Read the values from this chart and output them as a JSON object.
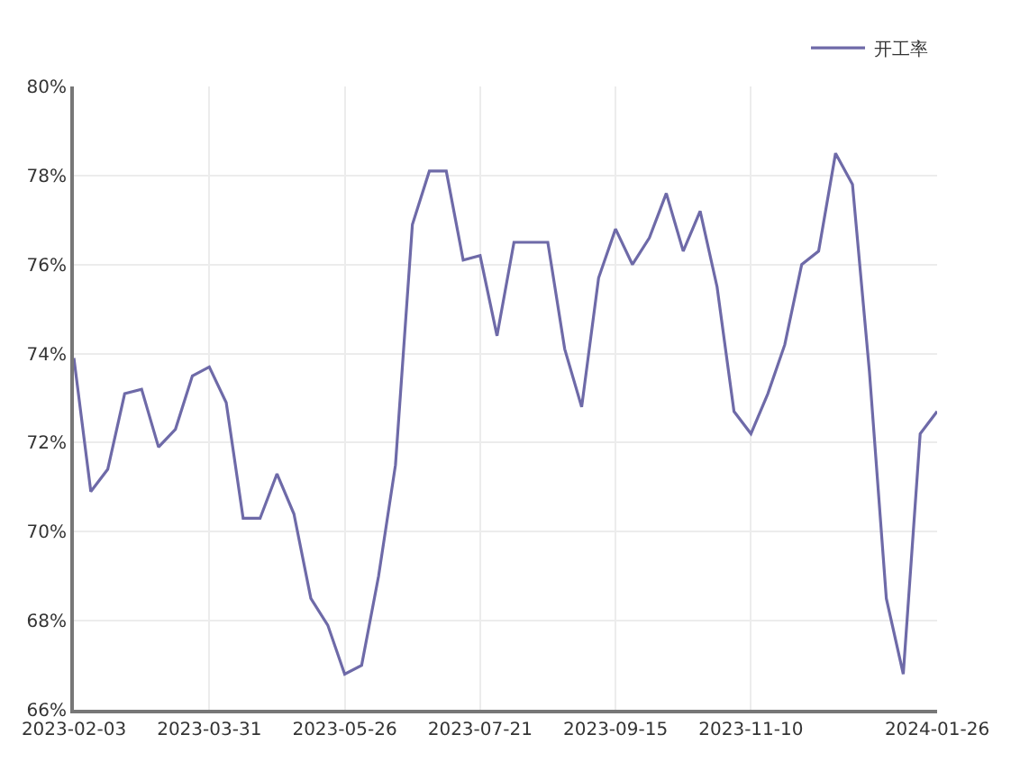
{
  "chart_data": {
    "type": "line",
    "x": [
      "2023-02-03",
      "2023-02-10",
      "2023-02-17",
      "2023-02-24",
      "2023-03-03",
      "2023-03-10",
      "2023-03-17",
      "2023-03-24",
      "2023-03-31",
      "2023-04-07",
      "2023-04-14",
      "2023-04-21",
      "2023-04-28",
      "2023-05-05",
      "2023-05-12",
      "2023-05-19",
      "2023-05-26",
      "2023-06-02",
      "2023-06-09",
      "2023-06-16",
      "2023-06-23",
      "2023-06-30",
      "2023-07-07",
      "2023-07-14",
      "2023-07-21",
      "2023-07-28",
      "2023-08-04",
      "2023-08-11",
      "2023-08-18",
      "2023-08-25",
      "2023-09-01",
      "2023-09-08",
      "2023-09-15",
      "2023-09-22",
      "2023-09-29",
      "2023-10-06",
      "2023-10-13",
      "2023-10-20",
      "2023-10-27",
      "2023-11-03",
      "2023-11-10",
      "2023-11-17",
      "2023-11-24",
      "2023-12-01",
      "2023-12-08",
      "2023-12-15",
      "2023-12-22",
      "2023-12-29",
      "2024-01-05",
      "2024-01-12",
      "2024-01-19",
      "2024-01-26"
    ],
    "series": [
      {
        "name": "开工率",
        "color": "#6e6aa8",
        "values": [
          73.9,
          70.9,
          71.4,
          73.1,
          73.2,
          71.9,
          72.3,
          73.5,
          73.7,
          72.9,
          70.3,
          70.3,
          71.3,
          70.4,
          68.5,
          67.9,
          66.8,
          67.0,
          69.0,
          71.5,
          76.9,
          78.1,
          78.1,
          76.1,
          76.2,
          74.4,
          76.5,
          76.5,
          76.5,
          74.1,
          72.8,
          75.7,
          76.8,
          76.0,
          76.6,
          77.6,
          76.3,
          77.2,
          75.5,
          72.7,
          72.2,
          73.1,
          74.2,
          76.0,
          76.3,
          78.5,
          77.8,
          73.6,
          68.5,
          66.8,
          72.2,
          72.7
        ]
      }
    ],
    "xlim": [
      "2023-02-03",
      "2024-01-26"
    ],
    "xticks": [
      "2023-02-03",
      "2023-03-31",
      "2023-05-26",
      "2023-07-21",
      "2023-09-15",
      "2023-11-10",
      "2024-01-26"
    ],
    "ylim": [
      66,
      80
    ],
    "yticks": [
      {
        "value": 66,
        "label": "66%"
      },
      {
        "value": 68,
        "label": "68%"
      },
      {
        "value": 70,
        "label": "70%"
      },
      {
        "value": 72,
        "label": "72%"
      },
      {
        "value": 74,
        "label": "74%"
      },
      {
        "value": 76,
        "label": "76%"
      },
      {
        "value": 78,
        "label": "78%"
      },
      {
        "value": 80,
        "label": "80%"
      }
    ],
    "grid": true,
    "legend": "top right",
    "marker": "none",
    "line_style": "solid"
  }
}
